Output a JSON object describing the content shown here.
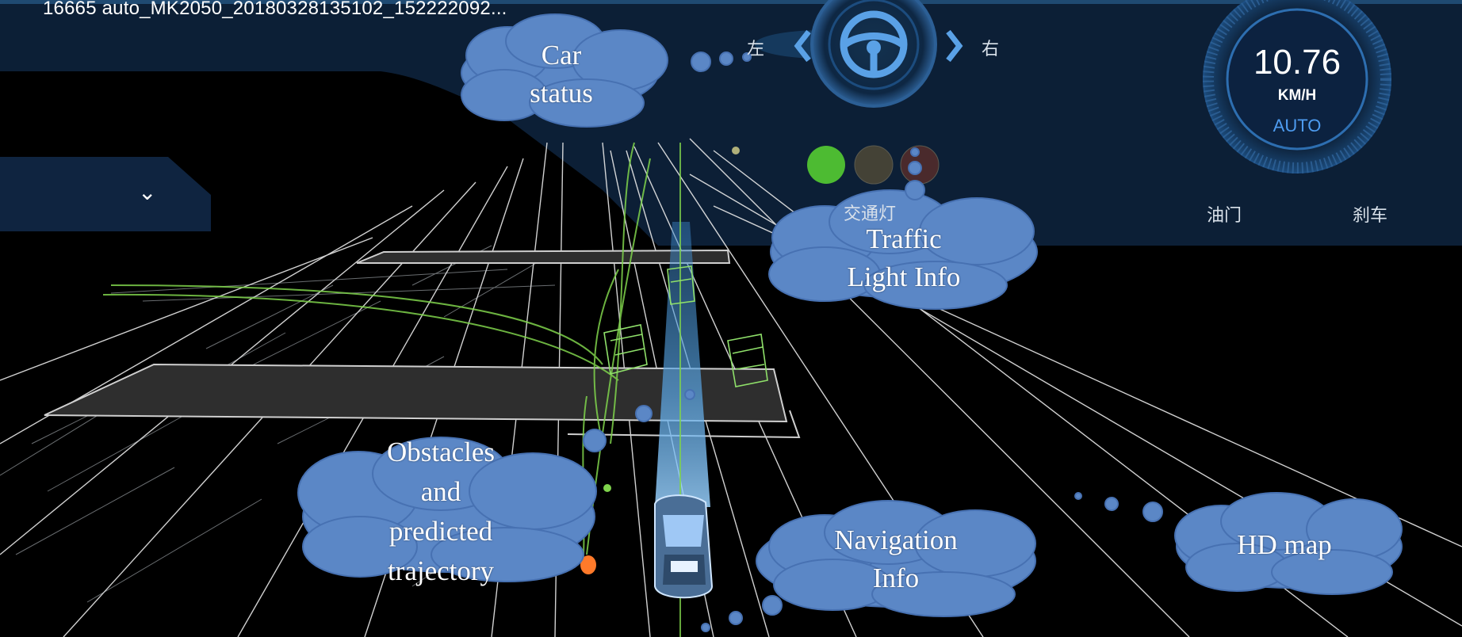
{
  "window": {
    "title": "16665 auto_MK2050_20180328135102_152222092..."
  },
  "dropdown": {
    "icon": "chevron-down-icon"
  },
  "steering": {
    "left_label": "左",
    "right_label": "右",
    "icon": "steering-wheel-icon"
  },
  "traffic_light": {
    "label": "交通灯",
    "lights": [
      {
        "color": "#4dbb32",
        "state": "on"
      },
      {
        "color": "#444236",
        "state": "off"
      },
      {
        "color": "#4a2a2c",
        "state": "off"
      }
    ]
  },
  "speedometer": {
    "speed": "10.76",
    "unit": "KM/H",
    "mode": "AUTO",
    "throttle_label": "油门",
    "brake_label": "刹车"
  },
  "callouts": {
    "car_status": {
      "lines": [
        "Car",
        "status"
      ]
    },
    "traffic_light_info": {
      "lines": [
        "Traffic",
        "Light Info"
      ]
    },
    "obstacles": {
      "lines": [
        "Obstacles",
        "and",
        "predicted",
        "trajectory"
      ]
    },
    "navigation_info": {
      "lines": [
        "Navigation",
        "Info"
      ]
    },
    "hd_map": {
      "lines": [
        "HD map"
      ]
    }
  },
  "colors": {
    "panel": "#0f2440",
    "accent_blue": "#2f6ea8",
    "cloud": "#5b87c6",
    "trajectory_green": "#7fd34c",
    "obstacle_orange": "#ff7a2a"
  }
}
